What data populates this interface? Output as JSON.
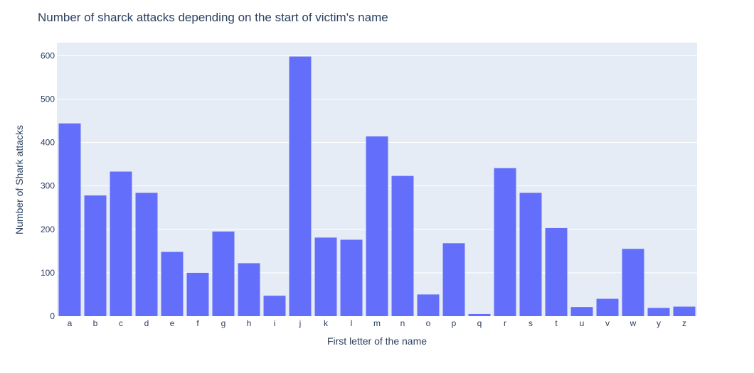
{
  "chart_data": {
    "type": "bar",
    "title": "Number of sharck attacks depending on the start of victim's name",
    "xlabel": "First letter of the name",
    "ylabel": "Number of Shark attacks",
    "ylim": [
      0,
      630
    ],
    "yticks": [
      0,
      100,
      200,
      300,
      400,
      500,
      600
    ],
    "categories": [
      "a",
      "b",
      "c",
      "d",
      "e",
      "f",
      "g",
      "h",
      "i",
      "j",
      "k",
      "l",
      "m",
      "n",
      "o",
      "p",
      "q",
      "r",
      "s",
      "t",
      "u",
      "v",
      "w",
      "y",
      "z"
    ],
    "values": [
      444,
      278,
      333,
      284,
      148,
      100,
      195,
      122,
      47,
      598,
      181,
      176,
      414,
      323,
      50,
      168,
      5,
      341,
      284,
      203,
      21,
      40,
      155,
      19,
      22
    ],
    "bar_color": "#636efa",
    "plot_background": "#e5ecf6",
    "grid": true
  }
}
